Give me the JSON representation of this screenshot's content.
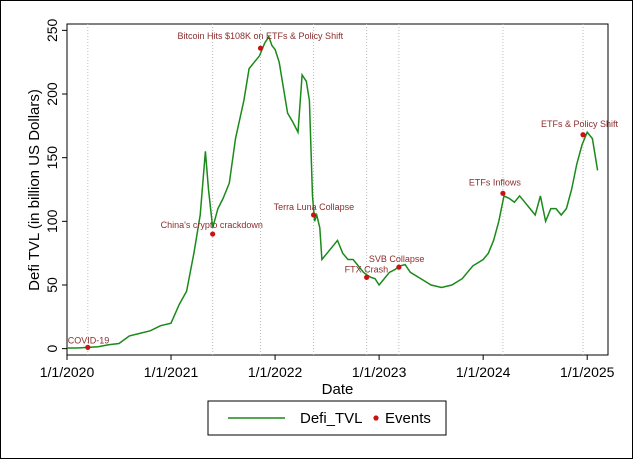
{
  "chart_data": {
    "type": "line",
    "xlabel": "Date",
    "ylabel": "Defi TVL (in billion US Dollars)",
    "xlim": [
      2020.0,
      2025.2
    ],
    "ylim": [
      -5,
      255
    ],
    "x_ticks": [
      {
        "label": "1/1/2020",
        "value": 2020.0
      },
      {
        "label": "1/1/2021",
        "value": 2021.0
      },
      {
        "label": "1/1/2022",
        "value": 2022.0
      },
      {
        "label": "1/1/2023",
        "value": 2023.0
      },
      {
        "label": "1/1/2024",
        "value": 2024.0
      },
      {
        "label": "1/1/2025",
        "value": 2025.0
      }
    ],
    "y_ticks": [
      0,
      50,
      100,
      150,
      200,
      250
    ],
    "grid": "vertical dotted lines at events",
    "legend": {
      "placement": "bottom",
      "entries": [
        "Defi_TVL",
        "Events"
      ]
    },
    "series": [
      {
        "name": "Defi_TVL",
        "color": "#1a8a1a",
        "x": [
          2020.0,
          2020.1,
          2020.2,
          2020.3,
          2020.4,
          2020.5,
          2020.6,
          2020.7,
          2020.8,
          2020.9,
          2021.0,
          2021.08,
          2021.15,
          2021.22,
          2021.28,
          2021.33,
          2021.36,
          2021.4,
          2021.45,
          2021.5,
          2021.56,
          2021.62,
          2021.66,
          2021.7,
          2021.75,
          2021.8,
          2021.85,
          2021.9,
          2021.94,
          2021.97,
          2022.0,
          2022.04,
          2022.08,
          2022.12,
          2022.17,
          2022.22,
          2022.26,
          2022.3,
          2022.33,
          2022.36,
          2022.38,
          2022.4,
          2022.43,
          2022.45,
          2022.5,
          2022.55,
          2022.6,
          2022.65,
          2022.7,
          2022.75,
          2022.8,
          2022.85,
          2022.88,
          2022.92,
          2022.96,
          2023.0,
          2023.05,
          2023.1,
          2023.15,
          2023.2,
          2023.25,
          2023.3,
          2023.4,
          2023.5,
          2023.6,
          2023.7,
          2023.8,
          2023.9,
          2024.0,
          2024.05,
          2024.1,
          2024.15,
          2024.2,
          2024.25,
          2024.3,
          2024.35,
          2024.4,
          2024.45,
          2024.5,
          2024.55,
          2024.6,
          2024.65,
          2024.7,
          2024.75,
          2024.8,
          2024.85,
          2024.9,
          2024.95,
          2025.0,
          2025.05,
          2025.1
        ],
        "y": [
          0.5,
          0.5,
          1,
          1.5,
          3,
          4,
          10,
          12,
          14,
          18,
          20,
          35,
          45,
          75,
          105,
          155,
          125,
          95,
          110,
          118,
          130,
          165,
          180,
          195,
          220,
          225,
          230,
          240,
          245,
          238,
          235,
          225,
          205,
          185,
          178,
          170,
          215,
          210,
          195,
          120,
          100,
          105,
          95,
          70,
          75,
          80,
          85,
          75,
          70,
          70,
          65,
          60,
          58,
          56,
          55,
          50,
          55,
          60,
          62,
          65,
          66,
          60,
          55,
          50,
          48,
          50,
          55,
          65,
          70,
          75,
          85,
          100,
          120,
          118,
          115,
          120,
          115,
          110,
          105,
          120,
          100,
          110,
          110,
          105,
          110,
          125,
          145,
          160,
          170,
          165,
          140
        ]
      }
    ],
    "events": [
      {
        "label": "COVID-19",
        "x": 2020.2,
        "y": 1
      },
      {
        "label": "China's crypto crackdown",
        "x": 2021.4,
        "y": 90
      },
      {
        "label": "Bitcoin Hits $108K on ETFs & Policy Shift",
        "x": 2021.86,
        "y": 236
      },
      {
        "label": "Terra Luna Collapse",
        "x": 2022.37,
        "y": 105
      },
      {
        "label": "FTX Crash",
        "x": 2022.88,
        "y": 56
      },
      {
        "label": "SVB Collapse",
        "x": 2023.19,
        "y": 64
      },
      {
        "label": "ETFs Inflows",
        "x": 2024.19,
        "y": 122
      },
      {
        "label": "ETFs & Policy Shift",
        "x": 2024.96,
        "y": 168
      }
    ],
    "colors": {
      "line": "#1a8a1a",
      "events": "#cc1111",
      "annotation": "#8b2d2d"
    }
  }
}
